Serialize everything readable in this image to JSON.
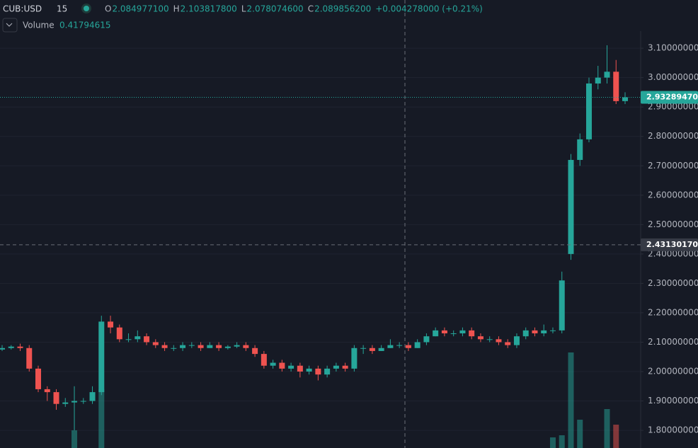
{
  "header": {
    "symbol": "CUB:USD",
    "interval": "15",
    "ohlc": [
      {
        "label": "O",
        "value": "2.084977100"
      },
      {
        "label": "H",
        "value": "2.103817800"
      },
      {
        "label": "L",
        "value": "2.078074600"
      },
      {
        "label": "C",
        "value": "2.089856200"
      }
    ],
    "change": "+0.004278000 (+0.21%)",
    "volume_label": "Volume",
    "volume_value": "0.41794615"
  },
  "chart_data": {
    "type": "candlestick",
    "up_color": "#26a69a",
    "down_color": "#ef5350",
    "open": [
      2.075,
      2.08,
      2.085,
      2.08,
      2.01,
      1.94,
      1.93,
      1.89,
      1.895,
      1.9,
      1.9,
      1.93,
      2.17,
      2.15,
      2.11,
      2.11,
      2.12,
      2.1,
      2.09,
      2.08,
      2.08,
      2.09,
      2.09,
      2.08,
      2.09,
      2.08,
      2.085,
      2.09,
      2.08,
      2.06,
      2.02,
      2.03,
      2.01,
      2.02,
      2.0,
      2.01,
      1.99,
      2.01,
      2.02,
      2.01,
      2.08,
      2.08,
      2.07,
      2.08,
      2.09,
      2.09,
      2.08,
      2.1,
      2.12,
      2.14,
      2.13,
      2.13,
      2.14,
      2.12,
      2.11,
      2.11,
      2.1,
      2.09,
      2.12,
      2.14,
      2.13,
      2.14,
      2.14,
      2.4,
      2.72,
      2.79,
      2.98,
      3.0,
      3.02,
      2.92
    ],
    "high": [
      2.09,
      2.09,
      2.095,
      2.09,
      2.02,
      1.95,
      1.94,
      1.91,
      1.95,
      1.91,
      1.95,
      2.19,
      2.19,
      2.16,
      2.13,
      2.14,
      2.13,
      2.11,
      2.1,
      2.09,
      2.1,
      2.1,
      2.1,
      2.1,
      2.1,
      2.09,
      2.1,
      2.1,
      2.09,
      2.07,
      2.04,
      2.04,
      2.03,
      2.03,
      2.02,
      2.02,
      2.02,
      2.03,
      2.03,
      2.09,
      2.09,
      2.09,
      2.09,
      2.11,
      2.1,
      2.1,
      2.11,
      2.13,
      2.15,
      2.15,
      2.14,
      2.15,
      2.15,
      2.13,
      2.12,
      2.12,
      2.11,
      2.13,
      2.15,
      2.15,
      2.16,
      2.15,
      2.34,
      2.74,
      2.81,
      3.0,
      3.04,
      3.11,
      3.06,
      2.95
    ],
    "low": [
      2.07,
      2.075,
      2.07,
      2.0,
      1.93,
      1.9,
      1.87,
      1.88,
      1.8,
      1.89,
      1.89,
      1.92,
      2.13,
      2.1,
      2.1,
      2.1,
      2.09,
      2.08,
      2.07,
      2.07,
      2.07,
      2.08,
      2.07,
      2.08,
      2.07,
      2.075,
      2.08,
      2.07,
      2.05,
      2.01,
      2.01,
      2.0,
      2.0,
      1.98,
      1.99,
      1.97,
      1.98,
      2.0,
      2.0,
      2.0,
      2.06,
      2.06,
      2.07,
      2.08,
      2.08,
      2.07,
      2.08,
      2.09,
      2.12,
      2.12,
      2.12,
      2.12,
      2.11,
      2.1,
      2.1,
      2.09,
      2.08,
      2.08,
      2.11,
      2.12,
      2.12,
      2.13,
      2.13,
      2.38,
      2.7,
      2.78,
      2.96,
      2.98,
      2.91,
      2.91
    ],
    "close": [
      2.08,
      2.085,
      2.08,
      2.01,
      1.94,
      1.93,
      1.89,
      1.895,
      1.9,
      1.9,
      1.93,
      2.17,
      2.15,
      2.11,
      2.11,
      2.12,
      2.1,
      2.09,
      2.08,
      2.08,
      2.09,
      2.09,
      2.08,
      2.09,
      2.08,
      2.085,
      2.09,
      2.08,
      2.06,
      2.02,
      2.03,
      2.01,
      2.02,
      2.0,
      2.01,
      1.99,
      2.01,
      2.02,
      2.01,
      2.08,
      2.08,
      2.07,
      2.08,
      2.09,
      2.09,
      2.08,
      2.1,
      2.12,
      2.14,
      2.13,
      2.13,
      2.14,
      2.12,
      2.11,
      2.11,
      2.1,
      2.09,
      2.12,
      2.14,
      2.13,
      2.14,
      2.14,
      2.31,
      2.72,
      2.79,
      2.98,
      3.0,
      3.02,
      2.92,
      2.933
    ],
    "volume": [
      0,
      0,
      0,
      0,
      0,
      0,
      0,
      0,
      25,
      0,
      0,
      83,
      0,
      0,
      0,
      0,
      0,
      0,
      0,
      0,
      0,
      0,
      0,
      0,
      0,
      0,
      0,
      0,
      0,
      0,
      0,
      0,
      0,
      0,
      0,
      0,
      0,
      0,
      0,
      0,
      0,
      0,
      0,
      0,
      0,
      0,
      0,
      0,
      0,
      0,
      0,
      0,
      0,
      0,
      0,
      0,
      0,
      0,
      0,
      0,
      0,
      15,
      18,
      135,
      40,
      0,
      0,
      55,
      33,
      0
    ],
    "ylim": [
      1.74,
      3.264
    ],
    "yticks": [
      {
        "value": 1.8,
        "label": "1.800000000"
      },
      {
        "value": 1.9,
        "label": "1.900000000"
      },
      {
        "value": 2.0,
        "label": "2.000000000"
      },
      {
        "value": 2.1,
        "label": "2.100000000"
      },
      {
        "value": 2.2,
        "label": "2.200000000"
      },
      {
        "value": 2.3,
        "label": "2.300000000"
      },
      {
        "value": 2.4,
        "label": "2.400000000"
      },
      {
        "value": 2.5,
        "label": "2.500000000"
      },
      {
        "value": 2.6,
        "label": "2.600000000"
      },
      {
        "value": 2.7,
        "label": "2.700000000"
      },
      {
        "value": 2.8,
        "label": "2.800000000"
      },
      {
        "value": 2.9,
        "label": "2.900000000"
      },
      {
        "value": 3.0,
        "label": "3.000000000"
      },
      {
        "value": 3.1,
        "label": "3.100000000"
      }
    ],
    "grid": true,
    "last_price": {
      "value": 2.9328947,
      "label": "2.932894700"
    },
    "crosshair_price": {
      "value": 2.4313017,
      "label": "2.431301700"
    }
  }
}
